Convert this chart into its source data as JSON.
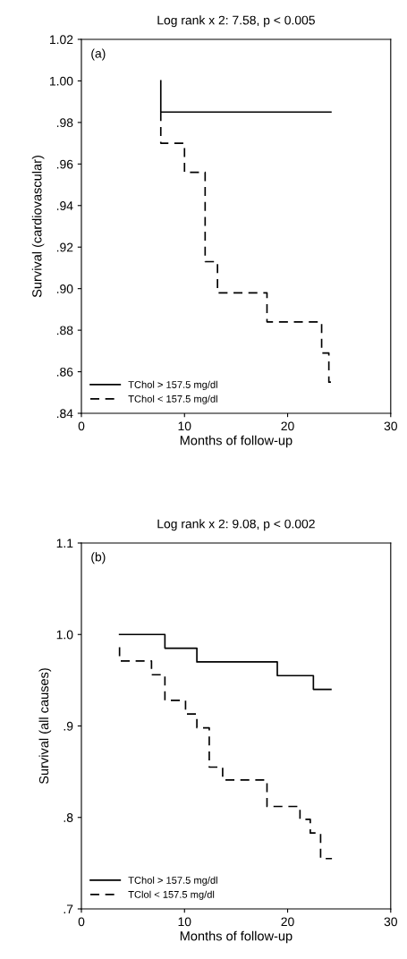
{
  "chart_data": [
    {
      "type": "step",
      "title": "Log rank x 2: 7.58, p < 0.005",
      "xlabel": "Months of follow-up",
      "ylabel": "Survival (cardiovascular)",
      "annotations": [
        "(a)"
      ],
      "xlim": [
        0,
        30
      ],
      "xticks": [
        0,
        10,
        20,
        30
      ],
      "ylim": [
        0.84,
        1.02
      ],
      "yticks": [
        {
          "value": 0.84,
          "label": ".84"
        },
        {
          "value": 0.86,
          "label": ".86"
        },
        {
          "value": 0.88,
          "label": ".88"
        },
        {
          "value": 0.9,
          "label": ".90"
        },
        {
          "value": 0.92,
          "label": ".92"
        },
        {
          "value": 0.94,
          "label": ".94"
        },
        {
          "value": 0.96,
          "label": ".96"
        },
        {
          "value": 0.98,
          "label": ".98"
        },
        {
          "value": 1.0,
          "label": "1.00"
        },
        {
          "value": 1.02,
          "label": "1.02"
        }
      ],
      "legend": "bottom left",
      "grid": false,
      "marker": "none",
      "series": [
        {
          "name": "TChol > 157.5 mg/dl",
          "color": "#000000",
          "line_style": "solid",
          "x": [
            7.7,
            7.7,
            24.2
          ],
          "values": [
            1.0,
            0.985,
            0.985
          ]
        },
        {
          "name": "TChol < 157.5 mg/dl",
          "color": "#000000",
          "line_style": "dashed",
          "x": [
            7.7,
            7.7,
            10,
            12,
            13.2,
            18,
            23.3,
            24,
            24.2
          ],
          "values": [
            0.985,
            0.97,
            0.956,
            0.913,
            0.898,
            0.884,
            0.869,
            0.855,
            0.855
          ]
        }
      ]
    },
    {
      "type": "step",
      "title": "Log rank x 2: 9.08, p < 0.002",
      "xlabel": "Months of follow-up",
      "ylabel": "Survival (all causes)",
      "annotations": [
        "(b)"
      ],
      "xlim": [
        0,
        30
      ],
      "xticks": [
        0,
        10,
        20,
        30
      ],
      "ylim": [
        0.7,
        1.1
      ],
      "yticks": [
        {
          "value": 0.7,
          "label": ".7"
        },
        {
          "value": 0.8,
          "label": ".8"
        },
        {
          "value": 0.9,
          "label": ".9"
        },
        {
          "value": 1.0,
          "label": "1.0"
        },
        {
          "value": 1.1,
          "label": "1.1"
        }
      ],
      "legend": "bottom left",
      "grid": false,
      "marker": "none",
      "series": [
        {
          "name": "TChol > 157.5 mg/dl",
          "color": "#000000",
          "line_style": "solid",
          "x": [
            3.7,
            8.1,
            11.2,
            19,
            22.5,
            24.2
          ],
          "values": [
            1.0,
            0.985,
            0.97,
            0.955,
            0.94,
            0.94
          ]
        },
        {
          "name": "TClol < 157.5 mg/dl",
          "color": "#000000",
          "line_style": "dashed",
          "x": [
            3.7,
            3.7,
            6.8,
            8.1,
            10.1,
            11.2,
            12.4,
            13.7,
            18,
            21.2,
            22.2,
            23.2,
            24.3
          ],
          "values": [
            0.986,
            0.971,
            0.956,
            0.928,
            0.913,
            0.898,
            0.855,
            0.841,
            0.812,
            0.798,
            0.783,
            0.755,
            0.755
          ]
        }
      ]
    }
  ]
}
